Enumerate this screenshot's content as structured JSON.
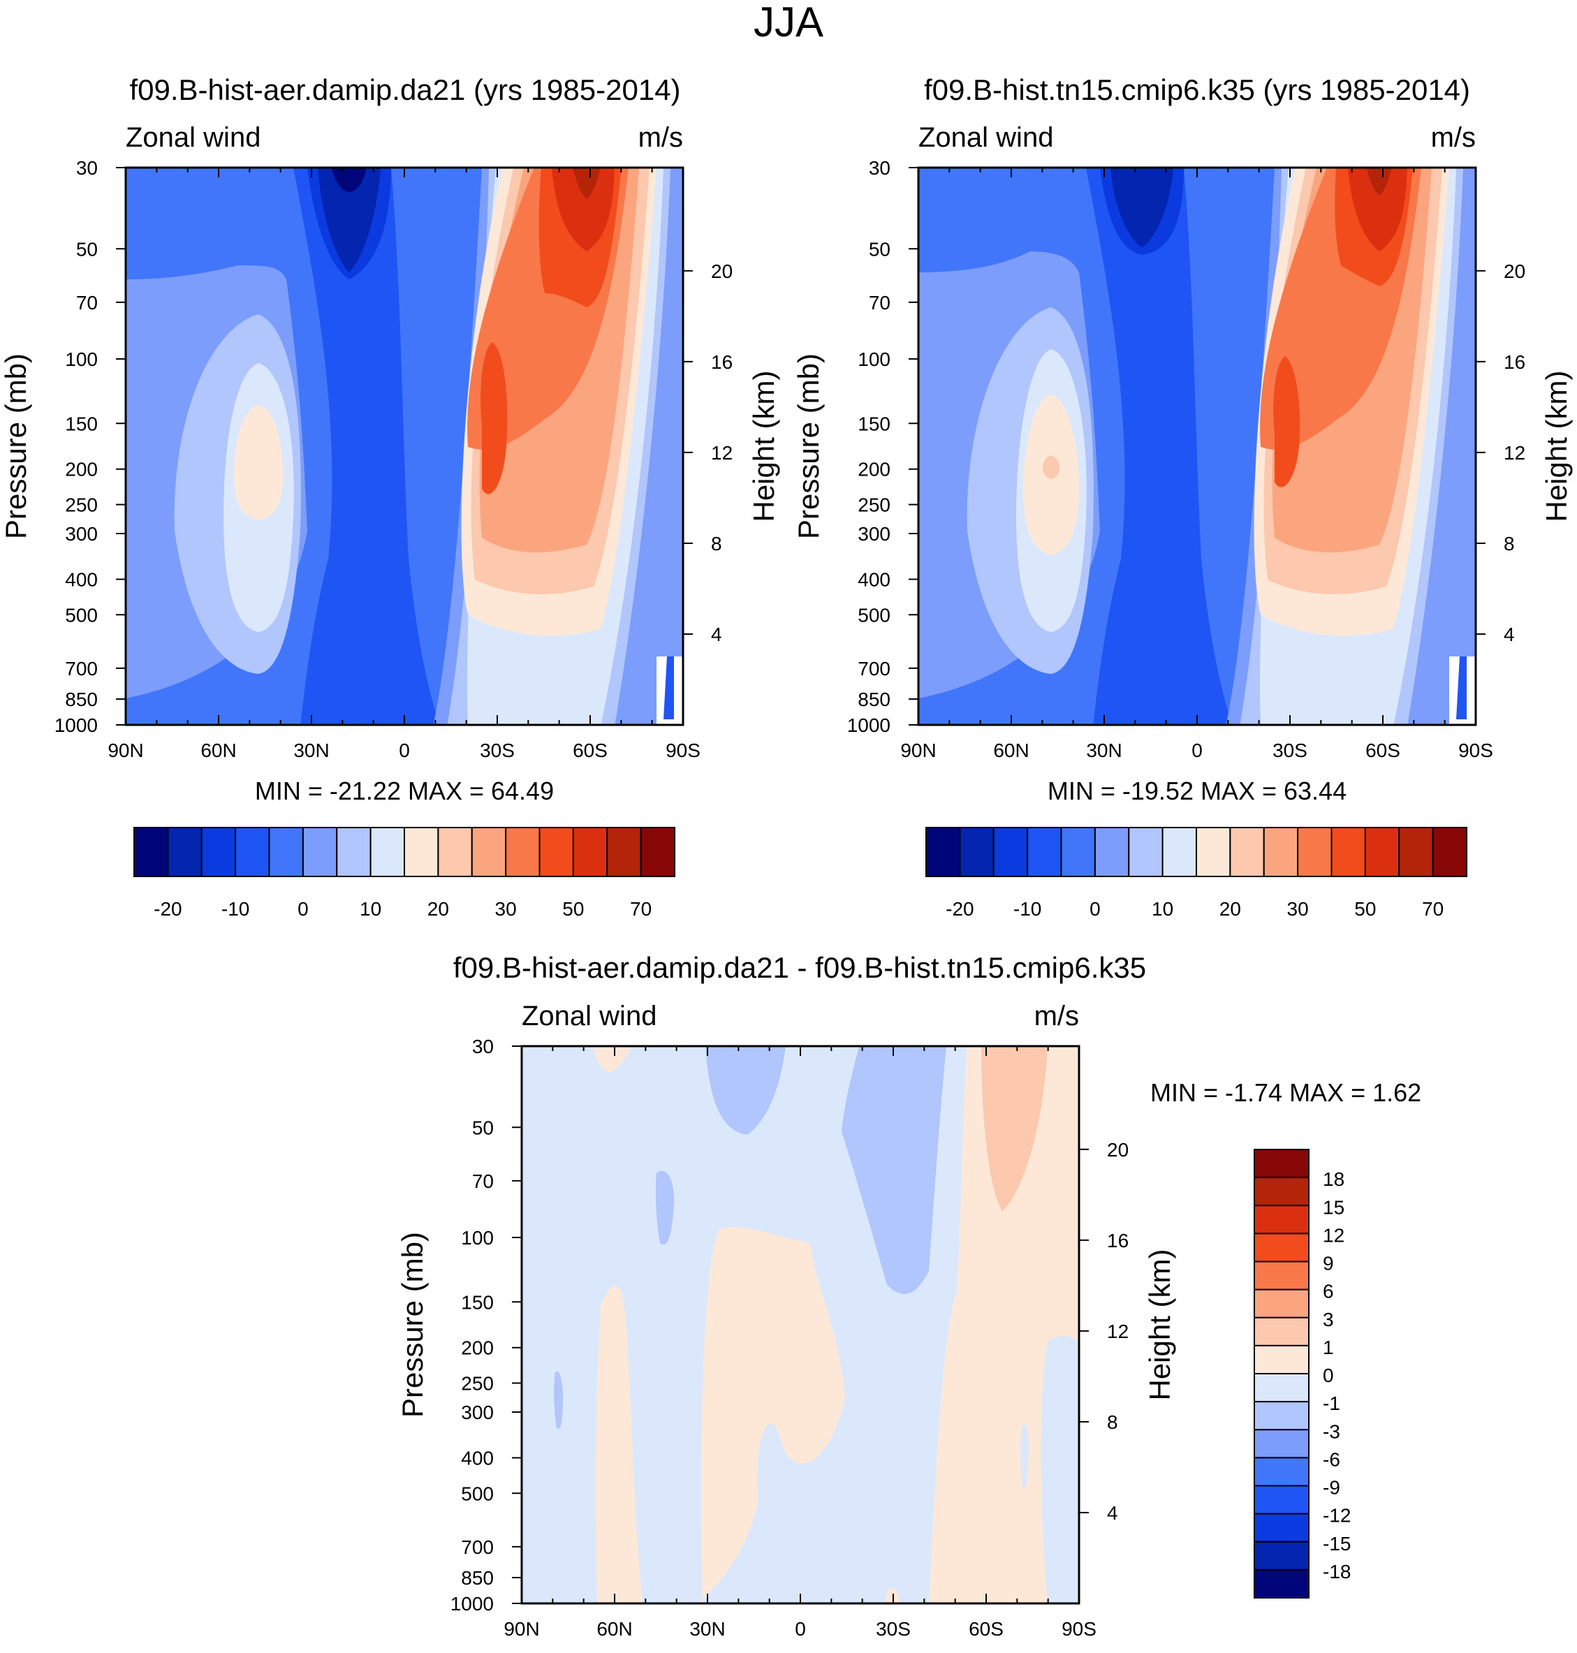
{
  "figure_title": "JJA",
  "colors": {
    "mean_scale": [
      "#00067a",
      "#0425b0",
      "#0b3be0",
      "#1f55f5",
      "#4176fa",
      "#7c9dfb",
      "#b0c6fc",
      "#dbe8fc",
      "#fde8d8",
      "#fcc8ae",
      "#fba57f",
      "#f8784a",
      "#f24c1c",
      "#db3010",
      "#b32409",
      "#870707"
    ],
    "diff_scale": [
      "#00067a",
      "#0425b0",
      "#0b3be0",
      "#1f55f5",
      "#4176fa",
      "#7c9dfb",
      "#b0c6fc",
      "#dbe8fc",
      "#fde8d8",
      "#fcc8ae",
      "#fba57f",
      "#f8784a",
      "#f24c1c",
      "#db3010",
      "#b32409",
      "#870707"
    ]
  },
  "chart_data": [
    {
      "id": "panel_a",
      "type": "heatmap",
      "title": "f09.B-hist-aer.damip.da21 (yrs 1985-2014)",
      "left_label": "Zonal wind",
      "right_label": "m/s",
      "ylabel": "Pressure (mb)",
      "y2label": "Height (km)",
      "xlabel": "",
      "x_ticks": [
        "90N",
        "60N",
        "30N",
        "0",
        "30S",
        "60S",
        "90S"
      ],
      "y_ticks": [
        "30",
        "50",
        "70",
        "100",
        "150",
        "200",
        "250",
        "300",
        "400",
        "500",
        "700",
        "850",
        "1000"
      ],
      "y2_ticks": [
        "20",
        "16",
        "12",
        "8",
        "4"
      ],
      "stats": "MIN = -21.22  MAX =  64.49",
      "min": -21.22,
      "max": 64.49,
      "colorbar_labels": [
        "-20",
        "-10",
        "0",
        "10",
        "20",
        "30",
        "50",
        "70"
      ]
    },
    {
      "id": "panel_b",
      "type": "heatmap",
      "title": "f09.B-hist.tn15.cmip6.k35 (yrs 1985-2014)",
      "left_label": "Zonal wind",
      "right_label": "m/s",
      "ylabel": "Pressure (mb)",
      "y2label": "Height (km)",
      "xlabel": "",
      "x_ticks": [
        "90N",
        "60N",
        "30N",
        "0",
        "30S",
        "60S",
        "90S"
      ],
      "y_ticks": [
        "30",
        "50",
        "70",
        "100",
        "150",
        "200",
        "250",
        "300",
        "400",
        "500",
        "700",
        "850",
        "1000"
      ],
      "y2_ticks": [
        "20",
        "16",
        "12",
        "8",
        "4"
      ],
      "stats": "MIN = -19.52  MAX =  63.44",
      "min": -19.52,
      "max": 63.44,
      "colorbar_labels": [
        "-20",
        "-10",
        "0",
        "10",
        "20",
        "30",
        "50",
        "70"
      ]
    },
    {
      "id": "panel_c",
      "type": "heatmap",
      "title": "f09.B-hist-aer.damip.da21 - f09.B-hist.tn15.cmip6.k35",
      "left_label": "Zonal wind",
      "right_label": "m/s",
      "ylabel": "Pressure (mb)",
      "y2label": "Height (km)",
      "xlabel": "",
      "x_ticks": [
        "90N",
        "60N",
        "30N",
        "0",
        "30S",
        "60S",
        "90S"
      ],
      "y_ticks": [
        "30",
        "50",
        "70",
        "100",
        "150",
        "200",
        "250",
        "300",
        "400",
        "500",
        "700",
        "850",
        "1000"
      ],
      "y2_ticks": [
        "20",
        "16",
        "12",
        "8",
        "4"
      ],
      "stats": "MIN =  -1.74  MAX =   1.62",
      "min": -1.74,
      "max": 1.62,
      "colorbar_labels": [
        "18",
        "15",
        "12",
        "9",
        "6",
        "3",
        "1",
        "0",
        "-1",
        "-3",
        "-6",
        "-9",
        "-12",
        "-15",
        "-18"
      ]
    }
  ]
}
